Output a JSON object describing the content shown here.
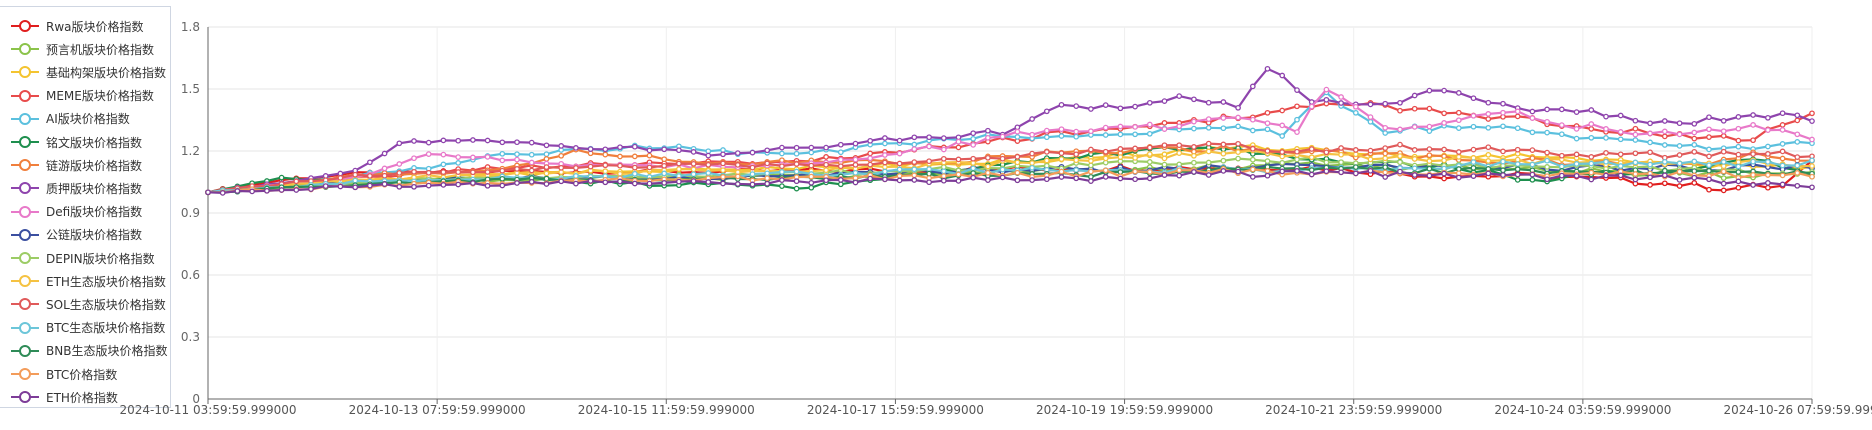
{
  "chart_data": {
    "type": "line",
    "ylim": [
      0,
      1.8
    ],
    "yticks": [
      "0",
      "0.3",
      "0.6",
      "0.9",
      "1.2",
      "1.5",
      "1.8"
    ],
    "x_start": "2024-10-11 03:59:59.999000",
    "x_end": "2024-10-26 07:59:59.999000",
    "x_ticks": [
      "2024-10-11 03:59:59.999000",
      "2024-10-13 07:59:59.999000",
      "2024-10-15 11:59:59.999000",
      "2024-10-17 15:59:59.999000",
      "2024-10-19 19:59:59.999000",
      "2024-10-21 23:59:59.999000",
      "2024-10-24 03:59:59.999000",
      "2024-10-26 07:59:59.999000"
    ],
    "grid": true,
    "legend_position": "left",
    "series": [
      {
        "name": "Rwa版块价格指数",
        "color": "#e01e1e",
        "anchors": [
          [
            0,
            1.0
          ],
          [
            5,
            1.06
          ],
          [
            10,
            1.09
          ],
          [
            20,
            1.1
          ],
          [
            35,
            1.1
          ],
          [
            50,
            1.11
          ],
          [
            65,
            1.12
          ],
          [
            75,
            1.12
          ],
          [
            84,
            1.08
          ],
          [
            90,
            1.08
          ],
          [
            98,
            1.05
          ],
          [
            103,
            1.02
          ],
          [
            107,
            1.03
          ],
          [
            109,
            1.14
          ]
        ]
      },
      {
        "name": "预言机版块价格指数",
        "color": "#8bc34a",
        "anchors": [
          [
            0,
            1.0
          ],
          [
            8,
            1.04
          ],
          [
            15,
            1.05
          ],
          [
            25,
            1.07
          ],
          [
            35,
            1.07
          ],
          [
            45,
            1.08
          ],
          [
            55,
            1.1
          ],
          [
            65,
            1.11
          ],
          [
            75,
            1.13
          ],
          [
            85,
            1.12
          ],
          [
            95,
            1.1
          ],
          [
            105,
            1.08
          ],
          [
            109,
            1.08
          ]
        ]
      },
      {
        "name": "基础构架版块价格指数",
        "color": "#f4c430",
        "anchors": [
          [
            0,
            1.0
          ],
          [
            8,
            1.05
          ],
          [
            15,
            1.07
          ],
          [
            25,
            1.1
          ],
          [
            35,
            1.11
          ],
          [
            45,
            1.13
          ],
          [
            55,
            1.15
          ],
          [
            60,
            1.17
          ],
          [
            65,
            1.2
          ],
          [
            70,
            1.22
          ],
          [
            75,
            1.2
          ],
          [
            80,
            1.18
          ],
          [
            85,
            1.18
          ],
          [
            90,
            1.17
          ],
          [
            95,
            1.15
          ],
          [
            100,
            1.13
          ],
          [
            105,
            1.13
          ],
          [
            109,
            1.12
          ]
        ]
      },
      {
        "name": "MEME版块价格指数",
        "color": "#e84b4b",
        "anchors": [
          [
            0,
            1.0
          ],
          [
            10,
            1.07
          ],
          [
            20,
            1.12
          ],
          [
            30,
            1.14
          ],
          [
            35,
            1.14
          ],
          [
            40,
            1.15
          ],
          [
            45,
            1.18
          ],
          [
            50,
            1.22
          ],
          [
            55,
            1.26
          ],
          [
            60,
            1.3
          ],
          [
            65,
            1.33
          ],
          [
            70,
            1.36
          ],
          [
            75,
            1.42
          ],
          [
            80,
            1.42
          ],
          [
            84,
            1.38
          ],
          [
            88,
            1.36
          ],
          [
            92,
            1.33
          ],
          [
            96,
            1.3
          ],
          [
            100,
            1.27
          ],
          [
            105,
            1.26
          ],
          [
            109,
            1.39
          ]
        ]
      },
      {
        "name": "AI版块价格指数",
        "color": "#5bc0de",
        "anchors": [
          [
            0,
            1.0
          ],
          [
            10,
            1.08
          ],
          [
            15,
            1.12
          ],
          [
            20,
            1.18
          ],
          [
            30,
            1.22
          ],
          [
            35,
            1.2
          ],
          [
            40,
            1.18
          ],
          [
            45,
            1.22
          ],
          [
            50,
            1.26
          ],
          [
            55,
            1.27
          ],
          [
            60,
            1.28
          ],
          [
            65,
            1.3
          ],
          [
            70,
            1.32
          ],
          [
            73,
            1.28
          ],
          [
            76,
            1.47
          ],
          [
            80,
            1.3
          ],
          [
            85,
            1.32
          ],
          [
            90,
            1.3
          ],
          [
            95,
            1.25
          ],
          [
            100,
            1.22
          ],
          [
            105,
            1.22
          ],
          [
            109,
            1.24
          ]
        ]
      },
      {
        "name": "铭文版块价格指数",
        "color": "#1e8f4e",
        "anchors": [
          [
            0,
            1.0
          ],
          [
            5,
            1.07
          ],
          [
            10,
            1.05
          ],
          [
            20,
            1.07
          ],
          [
            30,
            1.04
          ],
          [
            40,
            1.03
          ],
          [
            45,
            1.05
          ],
          [
            50,
            1.1
          ],
          [
            55,
            1.15
          ],
          [
            60,
            1.18
          ],
          [
            65,
            1.21
          ],
          [
            70,
            1.2
          ],
          [
            75,
            1.16
          ],
          [
            80,
            1.14
          ],
          [
            85,
            1.12
          ],
          [
            90,
            1.05
          ],
          [
            95,
            1.1
          ],
          [
            100,
            1.09
          ],
          [
            105,
            1.17
          ],
          [
            109,
            1.08
          ]
        ]
      },
      {
        "name": "链游版块价格指数",
        "color": "#f07f3c",
        "anchors": [
          [
            0,
            1.0
          ],
          [
            10,
            1.08
          ],
          [
            20,
            1.11
          ],
          [
            25,
            1.2
          ],
          [
            35,
            1.14
          ],
          [
            45,
            1.15
          ],
          [
            50,
            1.13
          ],
          [
            55,
            1.18
          ],
          [
            60,
            1.2
          ],
          [
            65,
            1.21
          ],
          [
            70,
            1.21
          ],
          [
            75,
            1.19
          ],
          [
            80,
            1.18
          ],
          [
            85,
            1.16
          ],
          [
            90,
            1.15
          ],
          [
            95,
            1.14
          ],
          [
            100,
            1.13
          ],
          [
            105,
            1.18
          ],
          [
            109,
            1.15
          ]
        ]
      },
      {
        "name": "质押版块价格指数",
        "color": "#8e44ad",
        "anchors": [
          [
            0,
            1.0
          ],
          [
            10,
            1.1
          ],
          [
            13,
            1.24
          ],
          [
            18,
            1.25
          ],
          [
            25,
            1.22
          ],
          [
            30,
            1.21
          ],
          [
            35,
            1.18
          ],
          [
            40,
            1.21
          ],
          [
            45,
            1.25
          ],
          [
            50,
            1.27
          ],
          [
            55,
            1.3
          ],
          [
            58,
            1.43
          ],
          [
            62,
            1.4
          ],
          [
            66,
            1.45
          ],
          [
            70,
            1.42
          ],
          [
            72,
            1.6
          ],
          [
            75,
            1.45
          ],
          [
            78,
            1.42
          ],
          [
            80,
            1.42
          ],
          [
            83,
            1.5
          ],
          [
            86,
            1.45
          ],
          [
            90,
            1.4
          ],
          [
            95,
            1.38
          ],
          [
            100,
            1.33
          ],
          [
            105,
            1.38
          ],
          [
            109,
            1.36
          ]
        ]
      },
      {
        "name": "Defi版块价格指数",
        "color": "#e879c9",
        "anchors": [
          [
            0,
            1.0
          ],
          [
            10,
            1.07
          ],
          [
            15,
            1.18
          ],
          [
            20,
            1.16
          ],
          [
            25,
            1.13
          ],
          [
            30,
            1.12
          ],
          [
            35,
            1.13
          ],
          [
            40,
            1.14
          ],
          [
            45,
            1.17
          ],
          [
            50,
            1.22
          ],
          [
            55,
            1.28
          ],
          [
            60,
            1.3
          ],
          [
            65,
            1.32
          ],
          [
            70,
            1.36
          ],
          [
            74,
            1.3
          ],
          [
            76,
            1.51
          ],
          [
            80,
            1.3
          ],
          [
            85,
            1.35
          ],
          [
            88,
            1.4
          ],
          [
            92,
            1.33
          ],
          [
            96,
            1.3
          ],
          [
            100,
            1.28
          ],
          [
            105,
            1.32
          ],
          [
            109,
            1.26
          ]
        ]
      },
      {
        "name": "公链版块价格指数",
        "color": "#3b4fa0",
        "anchors": [
          [
            0,
            1.0
          ],
          [
            10,
            1.05
          ],
          [
            20,
            1.07
          ],
          [
            30,
            1.07
          ],
          [
            40,
            1.08
          ],
          [
            50,
            1.1
          ],
          [
            60,
            1.11
          ],
          [
            70,
            1.12
          ],
          [
            80,
            1.13
          ],
          [
            90,
            1.12
          ],
          [
            100,
            1.12
          ],
          [
            109,
            1.12
          ]
        ]
      },
      {
        "name": "DEPIN版块价格指数",
        "color": "#9ccc65",
        "anchors": [
          [
            0,
            1.0
          ],
          [
            10,
            1.05
          ],
          [
            20,
            1.07
          ],
          [
            30,
            1.08
          ],
          [
            40,
            1.09
          ],
          [
            50,
            1.11
          ],
          [
            60,
            1.13
          ],
          [
            70,
            1.16
          ],
          [
            80,
            1.15
          ],
          [
            90,
            1.12
          ],
          [
            100,
            1.11
          ],
          [
            109,
            1.1
          ]
        ]
      },
      {
        "name": "ETH生态版块价格指数",
        "color": "#f5c242",
        "anchors": [
          [
            0,
            1.0
          ],
          [
            10,
            1.06
          ],
          [
            20,
            1.09
          ],
          [
            30,
            1.1
          ],
          [
            40,
            1.11
          ],
          [
            50,
            1.13
          ],
          [
            60,
            1.16
          ],
          [
            70,
            1.19
          ],
          [
            80,
            1.17
          ],
          [
            90,
            1.15
          ],
          [
            100,
            1.14
          ],
          [
            109,
            1.14
          ]
        ]
      },
      {
        "name": "SOL生态版块价格指数",
        "color": "#e05a5a",
        "anchors": [
          [
            0,
            1.0
          ],
          [
            10,
            1.08
          ],
          [
            20,
            1.11
          ],
          [
            30,
            1.13
          ],
          [
            40,
            1.13
          ],
          [
            50,
            1.15
          ],
          [
            55,
            1.18
          ],
          [
            60,
            1.2
          ],
          [
            65,
            1.22
          ],
          [
            70,
            1.22
          ],
          [
            75,
            1.2
          ],
          [
            80,
            1.22
          ],
          [
            85,
            1.21
          ],
          [
            90,
            1.2
          ],
          [
            95,
            1.18
          ],
          [
            100,
            1.18
          ],
          [
            105,
            1.2
          ],
          [
            109,
            1.17
          ]
        ]
      },
      {
        "name": "BTC生态版块价格指数",
        "color": "#6cc6d9",
        "anchors": [
          [
            0,
            1.0
          ],
          [
            10,
            1.05
          ],
          [
            20,
            1.07
          ],
          [
            30,
            1.08
          ],
          [
            40,
            1.09
          ],
          [
            50,
            1.1
          ],
          [
            60,
            1.11
          ],
          [
            70,
            1.11
          ],
          [
            80,
            1.12
          ],
          [
            90,
            1.14
          ],
          [
            100,
            1.14
          ],
          [
            109,
            1.14
          ]
        ]
      },
      {
        "name": "BNB生态版块价格指数",
        "color": "#2e8b57",
        "anchors": [
          [
            0,
            1.0
          ],
          [
            10,
            1.04
          ],
          [
            20,
            1.06
          ],
          [
            30,
            1.06
          ],
          [
            40,
            1.07
          ],
          [
            50,
            1.08
          ],
          [
            60,
            1.09
          ],
          [
            70,
            1.11
          ],
          [
            80,
            1.11
          ],
          [
            90,
            1.1
          ],
          [
            100,
            1.09
          ],
          [
            109,
            1.1
          ]
        ]
      },
      {
        "name": "BTC价格指数",
        "color": "#f39c5a",
        "anchors": [
          [
            0,
            1.0
          ],
          [
            10,
            1.03
          ],
          [
            20,
            1.05
          ],
          [
            30,
            1.06
          ],
          [
            40,
            1.07
          ],
          [
            50,
            1.08
          ],
          [
            60,
            1.09
          ],
          [
            70,
            1.1
          ],
          [
            80,
            1.09
          ],
          [
            90,
            1.09
          ],
          [
            100,
            1.09
          ],
          [
            109,
            1.08
          ]
        ]
      },
      {
        "name": "ETH价格指数",
        "color": "#7d3c98",
        "anchors": [
          [
            0,
            1.0
          ],
          [
            10,
            1.03
          ],
          [
            20,
            1.04
          ],
          [
            30,
            1.05
          ],
          [
            40,
            1.05
          ],
          [
            50,
            1.06
          ],
          [
            60,
            1.07
          ],
          [
            70,
            1.09
          ],
          [
            80,
            1.09
          ],
          [
            90,
            1.08
          ],
          [
            100,
            1.07
          ],
          [
            109,
            1.03
          ]
        ]
      }
    ]
  }
}
